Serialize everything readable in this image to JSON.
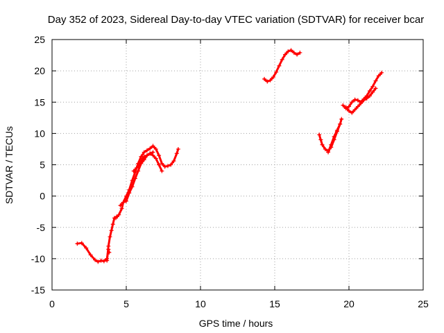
{
  "chart_data": {
    "type": "scatter",
    "title": "Day 352 of 2023, Sidereal Day-to-day VTEC variation (SDTVAR) for receiver bcar",
    "xlabel": "GPS time / hours",
    "ylabel": "SDTVAR / TECUs",
    "xlim": [
      0,
      25
    ],
    "ylim": [
      -15,
      25
    ],
    "xticks": [
      0,
      5,
      10,
      15,
      20,
      25
    ],
    "yticks": [
      -15,
      -10,
      -5,
      0,
      5,
      10,
      15,
      20,
      25
    ],
    "grid": true,
    "marker": "plus",
    "color": "#ff0000",
    "segments": [
      {
        "x": [
          1.7,
          2.0,
          2.3,
          2.6,
          2.9,
          3.1,
          3.3,
          3.5,
          3.7,
          3.8,
          3.85
        ],
        "y": [
          -7.6,
          -7.5,
          -8.3,
          -9.4,
          -10.2,
          -10.5,
          -10.3,
          -10.4,
          -10.0,
          -8.5,
          -9.0
        ]
      },
      {
        "x": [
          3.7,
          3.8,
          3.9,
          4.0,
          4.1,
          4.2,
          4.35
        ],
        "y": [
          -10.3,
          -8.0,
          -6.5,
          -5.5,
          -4.5,
          -3.5,
          -3.3
        ]
      },
      {
        "x": [
          4.3,
          4.5,
          4.7,
          4.8,
          5.0,
          5.2,
          5.4,
          5.6,
          5.8,
          6.0,
          6.2,
          6.4,
          6.6,
          6.8,
          7.0,
          7.2,
          7.4,
          7.6,
          7.8,
          8.0,
          8.2,
          8.4,
          8.5
        ],
        "y": [
          -3.5,
          -3.0,
          -2.0,
          -1.0,
          0.0,
          1.0,
          2.5,
          3.8,
          5.2,
          6.3,
          7.0,
          7.3,
          7.6,
          8.0,
          7.5,
          6.5,
          5.2,
          4.7,
          4.8,
          5.0,
          5.6,
          6.8,
          7.5
        ]
      },
      {
        "x": [
          4.6,
          4.8,
          5.0,
          5.2,
          5.4,
          5.6,
          5.8,
          6.0,
          6.2,
          6.4,
          6.6,
          6.8,
          7.0,
          7.2,
          7.4
        ],
        "y": [
          -1.5,
          -1.0,
          -0.8,
          0.5,
          1.5,
          2.8,
          4.0,
          5.2,
          5.8,
          6.5,
          6.8,
          6.5,
          6.0,
          5.0,
          4.0
        ]
      },
      {
        "x": [
          5.5,
          5.7,
          5.9,
          6.0,
          6.1,
          6.2,
          6.4,
          6.6,
          6.8
        ],
        "y": [
          4.0,
          4.5,
          5.0,
          5.5,
          6.0,
          6.3,
          6.5,
          6.8,
          7.0
        ]
      },
      {
        "x": [
          14.3,
          14.5,
          14.7,
          14.9,
          15.1,
          15.3,
          15.5,
          15.7,
          15.9,
          16.1,
          16.3,
          16.5,
          16.7
        ],
        "y": [
          18.7,
          18.3,
          18.5,
          19.0,
          19.8,
          20.8,
          21.8,
          22.6,
          23.1,
          23.3,
          22.9,
          22.6,
          22.9
        ]
      },
      {
        "x": [
          18.0,
          18.1,
          18.2,
          18.4,
          18.6,
          18.8,
          19.0,
          19.2,
          19.4,
          19.5
        ],
        "y": [
          9.8,
          9.0,
          8.2,
          7.5,
          7.2,
          7.8,
          9.0,
          10.3,
          11.5,
          12.3
        ]
      },
      {
        "x": [
          18.6,
          18.8,
          19.0,
          19.2,
          19.4
        ],
        "y": [
          7.0,
          8.2,
          9.5,
          10.5,
          11.5
        ]
      },
      {
        "x": [
          19.6,
          19.8,
          20.0,
          20.2,
          20.4,
          20.6,
          20.8,
          21.0,
          21.2,
          21.4,
          21.6,
          21.8,
          22.0,
          22.2
        ],
        "y": [
          14.5,
          14.0,
          14.3,
          15.0,
          15.4,
          15.3,
          15.0,
          15.5,
          16.0,
          16.8,
          17.5,
          18.4,
          19.2,
          19.7
        ]
      },
      {
        "x": [
          19.8,
          20.0,
          20.2,
          20.4,
          20.6,
          20.8,
          21.0,
          21.2,
          21.4,
          21.6,
          21.8
        ],
        "y": [
          14.2,
          13.6,
          13.3,
          13.8,
          14.3,
          14.8,
          15.3,
          15.6,
          16.0,
          16.6,
          17.2
        ]
      }
    ]
  }
}
